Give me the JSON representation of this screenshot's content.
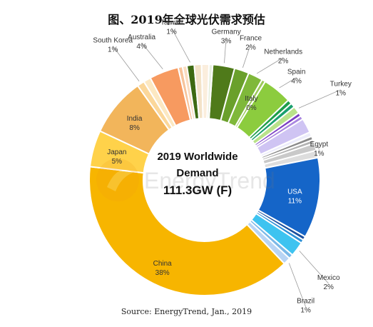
{
  "title": "图、2019年全球光伏需求预估",
  "source": "Source: EnergyTrend, Jan., 2019",
  "watermark": "EnergyTrend",
  "chart_data": {
    "type": "pie",
    "title": "图、2019年全球光伏需求预估",
    "center_label": [
      "2019 Worldwide",
      "Demand",
      "111.3GW (F)"
    ],
    "slices": [
      {
        "name": "Germany",
        "value": 3,
        "label": "3%",
        "color": "#4f7a1a"
      },
      {
        "name": "France",
        "value": 2,
        "label": "2%",
        "color": "#6aa02b"
      },
      {
        "name": "Netherlands",
        "value": 2,
        "label": "2%",
        "color": "#7fb83a"
      },
      {
        "name": "Italy",
        "value": 0.5,
        "label": "0%",
        "color": "#9cc95a"
      },
      {
        "name": "Spain",
        "value": 4,
        "label": "4%",
        "color": "#8ccc3e"
      },
      {
        "name": "",
        "value": 0.6,
        "label": "",
        "color": "#1e9e4a"
      },
      {
        "name": "",
        "value": 0.6,
        "label": "",
        "color": "#1aa06e"
      },
      {
        "name": "Turkey",
        "value": 1,
        "label": "1%",
        "color": "#b9e28a"
      },
      {
        "name": "",
        "value": 0.5,
        "label": "",
        "color": "#7b3fc4"
      },
      {
        "name": "",
        "value": 0.5,
        "label": "",
        "color": "#a986e0"
      },
      {
        "name": "",
        "value": 2,
        "label": "",
        "color": "#cfc4f3"
      },
      {
        "name": "",
        "value": 0.6,
        "label": "",
        "color": "#ececfb"
      },
      {
        "name": "",
        "value": 0.5,
        "label": "",
        "color": "#8a8a8a"
      },
      {
        "name": "",
        "value": 0.5,
        "label": "",
        "color": "#b2b2b2"
      },
      {
        "name": "Egypt",
        "value": 1,
        "label": "1%",
        "color": "#c9c9c9"
      },
      {
        "name": "",
        "value": 1,
        "label": "",
        "color": "#dddddd"
      },
      {
        "name": "USA",
        "value": 11,
        "label": "11%",
        "color": "#1565c8"
      },
      {
        "name": "",
        "value": 0.5,
        "label": "",
        "color": "#1a4f9e"
      },
      {
        "name": "",
        "value": 0.5,
        "label": "",
        "color": "#2c8fd6"
      },
      {
        "name": "Mexico",
        "value": 2,
        "label": "2%",
        "color": "#3ec3f0"
      },
      {
        "name": "",
        "value": 0.6,
        "label": "",
        "color": "#7ab8e8"
      },
      {
        "name": "Brazil",
        "value": 1,
        "label": "1%",
        "color": "#b8d4f4"
      },
      {
        "name": "China",
        "value": 38,
        "label": "38%",
        "color": "#f7b500"
      },
      {
        "name": "Japan",
        "value": 5,
        "label": "5%",
        "color": "#ffd24a"
      },
      {
        "name": "India",
        "value": 8,
        "label": "8%",
        "color": "#f2b55b"
      },
      {
        "name": "South Korea",
        "value": 1,
        "label": "1%",
        "color": "#fbd79a"
      },
      {
        "name": "",
        "value": 1,
        "label": "",
        "color": "#fce8c2"
      },
      {
        "name": "Australia",
        "value": 4,
        "label": "4%",
        "color": "#f79a60"
      },
      {
        "name": "",
        "value": 0.6,
        "label": "",
        "color": "#f7c39a"
      },
      {
        "name": "",
        "value": 0.6,
        "label": "",
        "color": "#fbdcc0"
      },
      {
        "name": "Taiwan",
        "value": 1,
        "label": "1%",
        "color": "#3d6a12"
      },
      {
        "name": "",
        "value": 1,
        "label": "",
        "color": "#f3e3c8"
      },
      {
        "name": "",
        "value": 1,
        "label": "",
        "color": "#fbeedd"
      },
      {
        "name": "",
        "value": 0.5,
        "label": "",
        "color": "#e8f0e0"
      }
    ]
  }
}
